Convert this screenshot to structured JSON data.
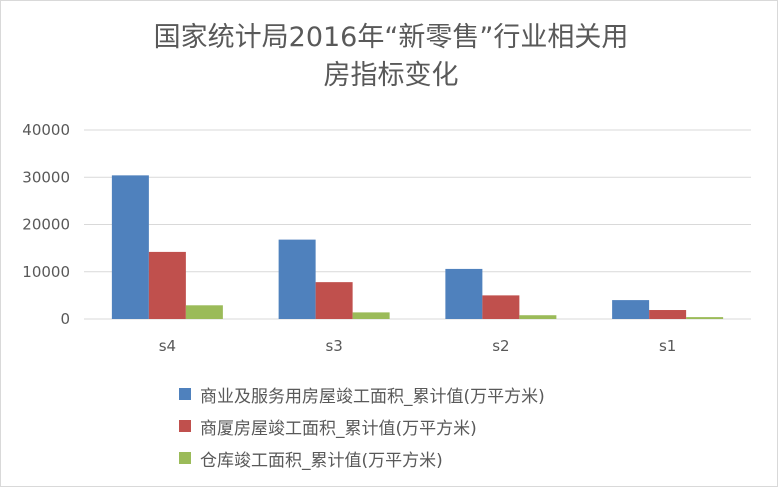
{
  "chart_data": {
    "type": "bar",
    "title_lines": [
      "国家统计局2016年“新零售”行业相关用",
      "房指标变化"
    ],
    "categories": [
      "s4",
      "s3",
      "s2",
      "s1"
    ],
    "series": [
      {
        "name": "商业及服务用房屋竣工面积_累计值(万平方米)",
        "color": "#4f81bd",
        "values": [
          30400,
          16800,
          10600,
          4000
        ]
      },
      {
        "name": "商厦房屋竣工面积_累计值(万平方米)",
        "color": "#c0504d",
        "values": [
          14200,
          7800,
          5000,
          1900
        ]
      },
      {
        "name": "仓库竣工面积_累计值(万平方米)",
        "color": "#9bbb59",
        "values": [
          2900,
          1400,
          800,
          400
        ]
      }
    ],
    "ylim": [
      0,
      40000
    ],
    "yticks": [
      "0",
      "10000",
      "20000",
      "30000",
      "40000"
    ],
    "grid": true,
    "legend_position": "bottom"
  }
}
